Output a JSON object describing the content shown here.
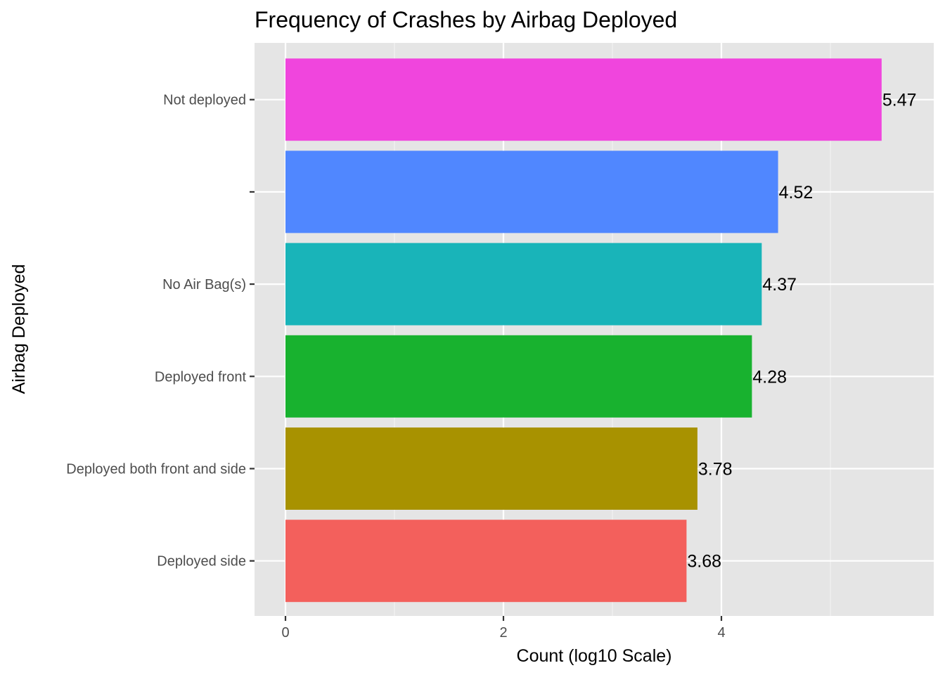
{
  "chart_data": {
    "type": "bar",
    "orientation": "horizontal",
    "title": "Frequency of Crashes by Airbag Deployed",
    "xlabel": "Count (log10 Scale)",
    "ylabel": "Airbag Deployed",
    "xlim": [
      0,
      5.74
    ],
    "x_ticks": [
      "0",
      "2",
      "4"
    ],
    "x_tick_values": [
      0,
      2,
      4
    ],
    "grid": true,
    "legend": "none",
    "categories": [
      "Not deployed",
      "",
      "No Air Bag(s)",
      "Deployed front",
      "Deployed both front and side",
      "Deployed side"
    ],
    "values": [
      5.47,
      4.52,
      4.37,
      4.28,
      3.78,
      3.68
    ],
    "labels": [
      "5.47",
      "4.52",
      "4.37",
      "4.28",
      "3.78",
      "3.68"
    ],
    "colors": [
      "#F045DD",
      "#5087FF",
      "#19B4B9",
      "#18B22F",
      "#A89200",
      "#F3605C"
    ]
  }
}
